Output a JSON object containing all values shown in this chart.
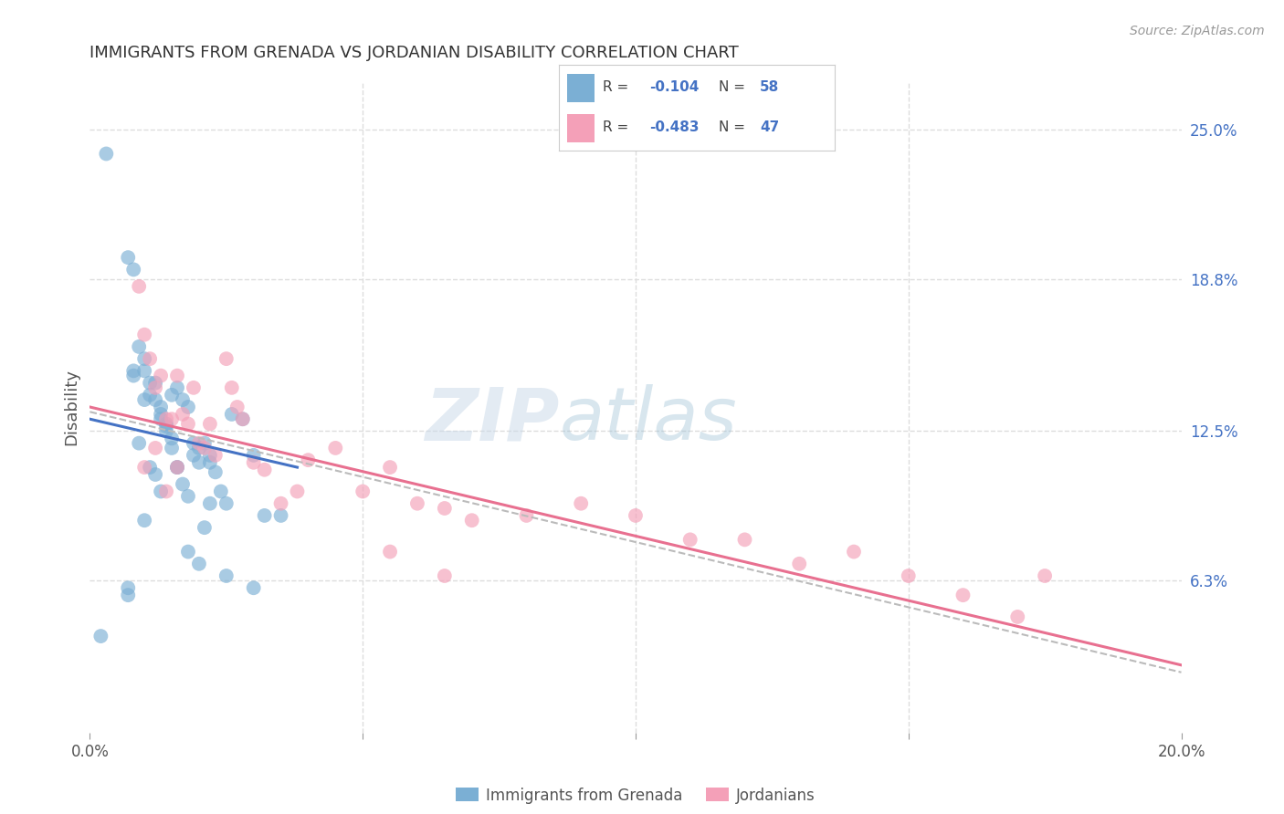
{
  "title": "IMMIGRANTS FROM GRENADA VS JORDANIAN DISABILITY CORRELATION CHART",
  "source": "Source: ZipAtlas.com",
  "ylabel": "Disability",
  "right_yticks": [
    6.3,
    12.5,
    18.8,
    25.0
  ],
  "right_ytick_labels": [
    "6.3%",
    "12.5%",
    "18.8%",
    "25.0%"
  ],
  "xlim": [
    0.0,
    0.2
  ],
  "ylim": [
    0.0,
    0.27
  ],
  "watermark_zip": "ZIP",
  "watermark_atlas": "atlas",
  "blue_scatter_x": [
    0.003,
    0.007,
    0.008,
    0.009,
    0.01,
    0.01,
    0.011,
    0.011,
    0.012,
    0.012,
    0.013,
    0.013,
    0.014,
    0.014,
    0.015,
    0.015,
    0.015,
    0.016,
    0.016,
    0.017,
    0.017,
    0.018,
    0.018,
    0.019,
    0.019,
    0.02,
    0.02,
    0.021,
    0.021,
    0.022,
    0.022,
    0.023,
    0.024,
    0.025,
    0.026,
    0.028,
    0.03,
    0.032,
    0.008,
    0.008,
    0.009,
    0.01,
    0.011,
    0.012,
    0.013,
    0.013,
    0.014,
    0.016,
    0.018,
    0.02,
    0.022,
    0.025,
    0.03,
    0.035,
    0.002,
    0.007,
    0.007,
    0.01
  ],
  "blue_scatter_y": [
    0.24,
    0.197,
    0.192,
    0.16,
    0.155,
    0.15,
    0.145,
    0.14,
    0.145,
    0.138,
    0.135,
    0.13,
    0.128,
    0.125,
    0.122,
    0.14,
    0.118,
    0.143,
    0.11,
    0.138,
    0.103,
    0.135,
    0.098,
    0.12,
    0.115,
    0.118,
    0.112,
    0.085,
    0.12,
    0.115,
    0.112,
    0.108,
    0.1,
    0.095,
    0.132,
    0.13,
    0.115,
    0.09,
    0.15,
    0.148,
    0.12,
    0.138,
    0.11,
    0.107,
    0.132,
    0.1,
    0.127,
    0.11,
    0.075,
    0.07,
    0.095,
    0.065,
    0.06,
    0.09,
    0.04,
    0.06,
    0.057,
    0.088
  ],
  "pink_scatter_x": [
    0.009,
    0.01,
    0.011,
    0.012,
    0.013,
    0.014,
    0.015,
    0.016,
    0.017,
    0.018,
    0.019,
    0.02,
    0.021,
    0.022,
    0.023,
    0.025,
    0.026,
    0.027,
    0.028,
    0.03,
    0.032,
    0.035,
    0.038,
    0.04,
    0.045,
    0.05,
    0.055,
    0.06,
    0.065,
    0.07,
    0.08,
    0.09,
    0.1,
    0.11,
    0.12,
    0.13,
    0.14,
    0.15,
    0.16,
    0.17,
    0.175,
    0.01,
    0.012,
    0.014,
    0.016,
    0.055,
    0.065
  ],
  "pink_scatter_y": [
    0.185,
    0.165,
    0.155,
    0.143,
    0.148,
    0.13,
    0.13,
    0.148,
    0.132,
    0.128,
    0.143,
    0.12,
    0.118,
    0.128,
    0.115,
    0.155,
    0.143,
    0.135,
    0.13,
    0.112,
    0.109,
    0.095,
    0.1,
    0.113,
    0.118,
    0.1,
    0.11,
    0.095,
    0.093,
    0.088,
    0.09,
    0.095,
    0.09,
    0.08,
    0.08,
    0.07,
    0.075,
    0.065,
    0.057,
    0.048,
    0.065,
    0.11,
    0.118,
    0.1,
    0.11,
    0.075,
    0.065
  ],
  "blue_line_x": [
    0.0,
    0.038
  ],
  "blue_line_y": [
    0.13,
    0.11
  ],
  "pink_line_x": [
    0.0,
    0.2
  ],
  "pink_line_y": [
    0.135,
    0.028
  ],
  "gray_dash_line_x": [
    0.0,
    0.2
  ],
  "gray_dash_line_y": [
    0.133,
    0.025
  ],
  "dot_color_blue": "#7BAFD4",
  "dot_color_pink": "#F4A0B8",
  "line_color_blue": "#4472C4",
  "line_color_pink": "#E87090",
  "line_color_gray": "#BBBBBB",
  "background_color": "#FFFFFF",
  "grid_color": "#DDDDDD",
  "title_color": "#333333",
  "right_axis_color": "#4472C4",
  "legend_border_color": "#CCCCCC",
  "legend_r1": "-0.104",
  "legend_n1": "58",
  "legend_r2": "-0.483",
  "legend_n2": "47"
}
